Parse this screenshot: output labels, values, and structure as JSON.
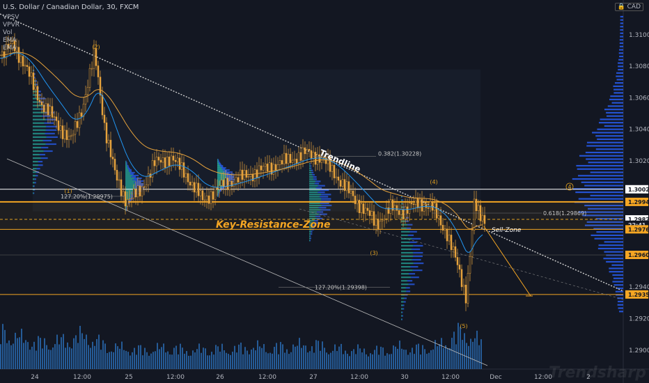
{
  "header": {
    "symbol": "U.S. Dollar / Canadian Dollar, 30, FXCM",
    "indicators": [
      "VPSV",
      "VPVR",
      "Vol",
      "EMA",
      "EMA"
    ]
  },
  "currency": "CAD",
  "watermark": "Trendsharp",
  "colors": {
    "background": "#131722",
    "orange": "#f5a623",
    "white_line": "#ffffff",
    "volume": "#2a6db5",
    "profile_blue": "#2962ff",
    "profile_teal": "#26a69a",
    "ema_fast": "#2196f3",
    "ema_slow": "#e6a23c"
  },
  "chart_data": {
    "type": "candlestick",
    "xlabel": "",
    "ylabel": "",
    "x_ticks": [
      "24",
      "12:00",
      "25",
      "12:00",
      "26",
      "12:00",
      "27",
      "12:00",
      "30",
      "12:00",
      "Dec",
      "12:00",
      "2"
    ],
    "ylim": [
      1.2888,
      1.3122
    ],
    "y_ticks": [
      1.31,
      1.308,
      1.306,
      1.304,
      1.302,
      1.294,
      1.292,
      1.29
    ],
    "price_levels": [
      {
        "label": "1.30020",
        "value": 1.3002,
        "style": "white"
      },
      {
        "label": "1.29940",
        "value": 1.2994,
        "style": "orange"
      },
      {
        "label": "1.29829",
        "value": 1.29829,
        "style": "white"
      },
      {
        "label": "22:41",
        "value": 1.29795,
        "style": "dark"
      },
      {
        "label": "1.29766",
        "value": 1.29766,
        "style": "orange"
      },
      {
        "label": "1.29604",
        "value": 1.29604,
        "style": "orange"
      },
      {
        "label": "1.29353",
        "value": 1.29353,
        "style": "orange"
      }
    ],
    "annotations": {
      "trendline_label": "Trendline",
      "zone_label": "Key-Resistance-Zone",
      "sell_zone_label": "Sell-Zone",
      "fib_0382": "0.382(1.30228)",
      "fib_0618": "0.618(1.29869)",
      "ext_1272_a": "127.20%(1.29975)",
      "ext_1272_b": "127.20%(1.29398)",
      "waves": [
        "(1)",
        "(2)",
        "(3)",
        "(4)",
        "(5)",
        "4"
      ]
    },
    "price_path": [
      [
        0,
        1.3085
      ],
      [
        18,
        1.3095
      ],
      [
        40,
        1.3075
      ],
      [
        60,
        1.3055
      ],
      [
        80,
        1.3045
      ],
      [
        100,
        1.3032
      ],
      [
        118,
        1.3055
      ],
      [
        135,
        1.3088
      ],
      [
        150,
        1.304
      ],
      [
        165,
        1.301
      ],
      [
        180,
        1.2995
      ],
      [
        200,
        1.3
      ],
      [
        220,
        1.3018
      ],
      [
        245,
        1.3022
      ],
      [
        265,
        1.3012
      ],
      [
        290,
        1.2995
      ],
      [
        320,
        1.3005
      ],
      [
        350,
        1.301
      ],
      [
        380,
        1.3015
      ],
      [
        410,
        1.302
      ],
      [
        440,
        1.3025
      ],
      [
        460,
        1.3022
      ],
      [
        480,
        1.3012
      ],
      [
        500,
        1.3
      ],
      [
        520,
        1.299
      ],
      [
        540,
        1.298
      ],
      [
        560,
        1.299
      ],
      [
        580,
        1.2988
      ],
      [
        600,
        1.2994
      ],
      [
        620,
        1.299
      ],
      [
        640,
        1.2975
      ],
      [
        655,
        1.2955
      ],
      [
        668,
        1.2935
      ],
      [
        675,
        1.2965
      ],
      [
        680,
        1.2992
      ],
      [
        688,
        1.2985
      ],
      [
        695,
        1.2983
      ]
    ],
    "volume": [
      [
        0,
        0.55
      ],
      [
        30,
        0.45
      ],
      [
        60,
        0.38
      ],
      [
        90,
        0.42
      ],
      [
        120,
        0.5
      ],
      [
        150,
        0.35
      ],
      [
        180,
        0.3
      ],
      [
        210,
        0.28
      ],
      [
        240,
        0.32
      ],
      [
        270,
        0.27
      ],
      [
        300,
        0.3
      ],
      [
        330,
        0.29
      ],
      [
        360,
        0.33
      ],
      [
        390,
        0.31
      ],
      [
        420,
        0.34
      ],
      [
        450,
        0.36
      ],
      [
        480,
        0.3
      ],
      [
        510,
        0.28
      ],
      [
        540,
        0.27
      ],
      [
        570,
        0.32
      ],
      [
        600,
        0.3
      ],
      [
        630,
        0.35
      ],
      [
        660,
        0.55
      ],
      [
        690,
        0.4
      ]
    ]
  }
}
